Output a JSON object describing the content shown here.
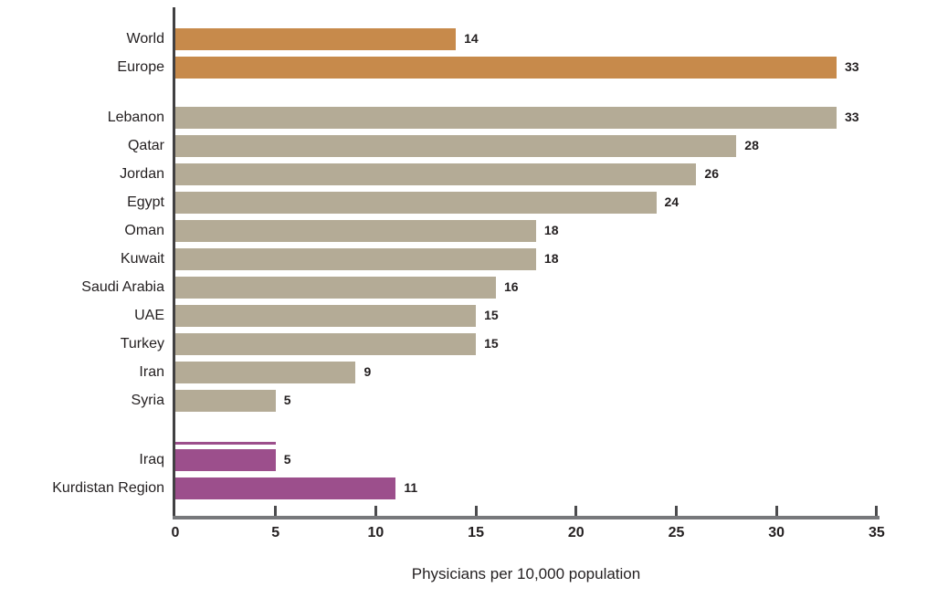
{
  "chart_data": {
    "type": "bar",
    "orientation": "horizontal",
    "xlabel": "Physicians per 10,000 population",
    "xlim": [
      0,
      35
    ],
    "xticks": [
      0,
      5,
      10,
      15,
      20,
      25,
      30,
      35
    ],
    "grid": false,
    "legend": false,
    "groups": [
      {
        "name": "world-europe",
        "color": "#c78a4b",
        "items": [
          {
            "label": "World",
            "value": 14
          },
          {
            "label": "Europe",
            "value": 33
          }
        ]
      },
      {
        "name": "regional-countries",
        "color": "#b4ab96",
        "items": [
          {
            "label": "Lebanon",
            "value": 33
          },
          {
            "label": "Qatar",
            "value": 28
          },
          {
            "label": "Jordan",
            "value": 26
          },
          {
            "label": "Egypt",
            "value": 24
          },
          {
            "label": "Oman",
            "value": 18
          },
          {
            "label": "Kuwait",
            "value": 18
          },
          {
            "label": "Saudi Arabia",
            "value": 16
          },
          {
            "label": "UAE",
            "value": 15
          },
          {
            "label": "Turkey",
            "value": 15
          },
          {
            "label": "Iran",
            "value": 9
          },
          {
            "label": "Syria",
            "value": 5
          }
        ]
      },
      {
        "name": "iraq-kurdistan",
        "color": "#9c4f8c",
        "items": [
          {
            "label": "Iraq",
            "value": 5,
            "top_stripe": true
          },
          {
            "label": "Kurdistan Region",
            "value": 11
          }
        ]
      }
    ],
    "colors": {
      "world_europe_bars": "#c78a4b",
      "regional_bars": "#b4ab96",
      "iraq_kurdistan_bars": "#9c4f8c",
      "y_spine": "#414042",
      "x_axis_line": "#77787b",
      "text": "#231f20"
    }
  }
}
